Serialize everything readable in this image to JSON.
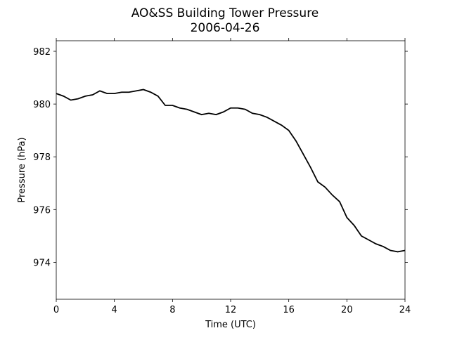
{
  "chart_data": {
    "type": "line",
    "title": "AO&SS Building Tower Pressure",
    "subtitle": "2006-04-26",
    "xlabel": "Time (UTC)",
    "ylabel": "Pressure (hPa)",
    "x": [
      0,
      0.5,
      1,
      1.5,
      2,
      2.5,
      3,
      3.5,
      4,
      4.5,
      5,
      5.5,
      6,
      6.5,
      7,
      7.5,
      8,
      8.5,
      9,
      9.5,
      10,
      10.5,
      11,
      11.5,
      12,
      12.5,
      13,
      13.5,
      14,
      14.5,
      15,
      15.5,
      16,
      16.5,
      17,
      17.5,
      18,
      18.5,
      19,
      19.5,
      20,
      20.5,
      21,
      21.5,
      22,
      22.5,
      23,
      23.5,
      24
    ],
    "series": [
      {
        "name": "Pressure",
        "color": "#000000",
        "values": [
          980.4,
          980.3,
          980.15,
          980.2,
          980.3,
          980.35,
          980.5,
          980.4,
          980.4,
          980.45,
          980.45,
          980.5,
          980.55,
          980.45,
          980.3,
          979.95,
          979.95,
          979.85,
          979.8,
          979.7,
          979.6,
          979.65,
          979.6,
          979.7,
          979.85,
          979.85,
          979.8,
          979.65,
          979.6,
          979.5,
          979.35,
          979.2,
          979.0,
          978.6,
          978.1,
          977.6,
          977.05,
          976.85,
          976.55,
          976.3,
          975.7,
          975.4,
          975.0,
          974.85,
          974.7,
          974.6,
          974.45,
          974.4,
          974.45
        ]
      }
    ],
    "xlim": [
      0,
      24
    ],
    "xticks": [
      0,
      4,
      8,
      12,
      16,
      20,
      24
    ],
    "ylim": [
      972.6,
      982.4
    ],
    "yticks": [
      974,
      976,
      978,
      980,
      982
    ]
  }
}
